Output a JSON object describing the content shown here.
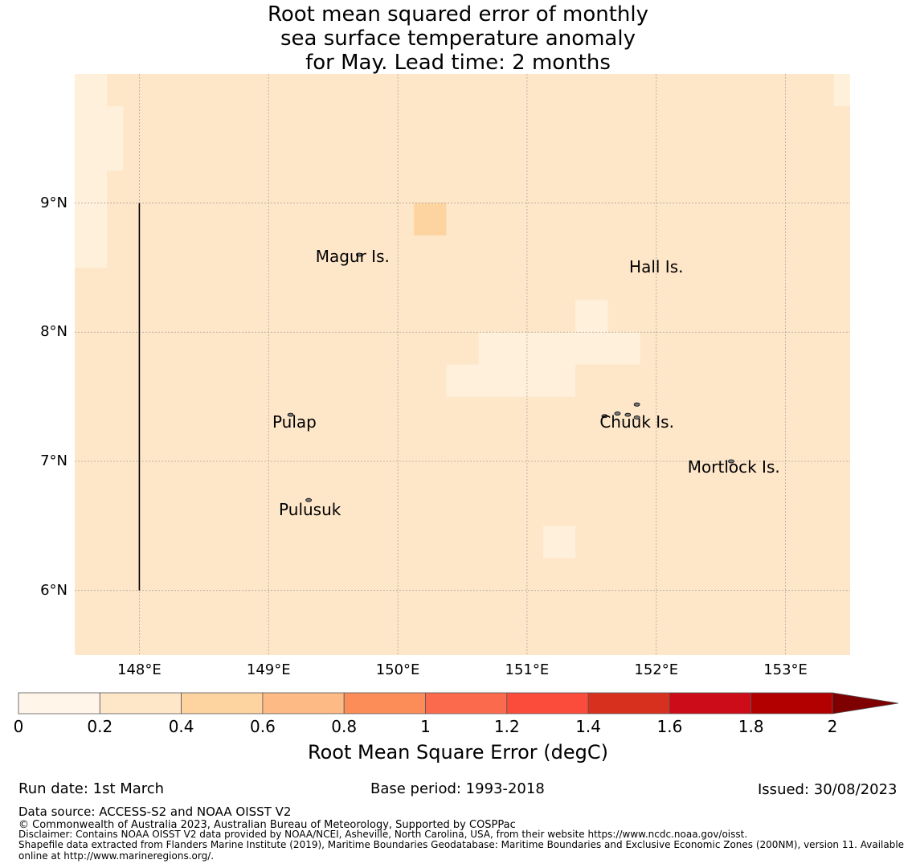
{
  "title": {
    "line1": "Root mean squared error of monthly",
    "line2": "sea surface temperature anomaly",
    "line3": "for May. Lead time: 2 months"
  },
  "map": {
    "lon_range": [
      147.5,
      153.5
    ],
    "lat_range": [
      5.5,
      10.0
    ],
    "lon_ticks": [
      {
        "value": 148,
        "label": "148°E"
      },
      {
        "value": 149,
        "label": "149°E"
      },
      {
        "value": 150,
        "label": "150°E"
      },
      {
        "value": 151,
        "label": "151°E"
      },
      {
        "value": 152,
        "label": "152°E"
      },
      {
        "value": 153,
        "label": "153°E"
      }
    ],
    "lat_ticks": [
      {
        "value": 9,
        "label": "9°N"
      },
      {
        "value": 8,
        "label": "8°N"
      },
      {
        "value": 7,
        "label": "7°N"
      },
      {
        "value": 6,
        "label": "6°N"
      }
    ],
    "background_color": "#fee6c9",
    "cells": [
      {
        "lon0": 147.5,
        "lon1": 147.75,
        "lat0": 8.5,
        "lat1": 10.0,
        "color": "#fff0dc"
      },
      {
        "lon0": 147.75,
        "lon1": 147.875,
        "lat0": 9.25,
        "lat1": 9.75,
        "color": "#fff0dc"
      },
      {
        "lon0": 153.375,
        "lon1": 153.5,
        "lat0": 9.75,
        "lat1": 10.0,
        "color": "#fff0dc"
      },
      {
        "lon0": 150.125,
        "lon1": 150.375,
        "lat0": 8.75,
        "lat1": 9.0,
        "color": "#fdd3a0"
      },
      {
        "lon0": 151.375,
        "lon1": 151.625,
        "lat0": 8.0,
        "lat1": 8.25,
        "color": "#fff0dc"
      },
      {
        "lon0": 150.625,
        "lon1": 151.875,
        "lat0": 7.75,
        "lat1": 8.0,
        "color": "#fff0dc"
      },
      {
        "lon0": 150.375,
        "lon1": 151.375,
        "lat0": 7.5,
        "lat1": 7.75,
        "color": "#fff0dc"
      },
      {
        "lon0": 151.125,
        "lon1": 151.375,
        "lat0": 6.25,
        "lat1": 6.5,
        "color": "#fff0dc"
      }
    ],
    "boundary_line": {
      "lon": 148.0,
      "lat0": 6.0,
      "lat1": 9.0
    },
    "places": [
      {
        "name": "Magur Is.",
        "lon": 149.65,
        "lat": 8.58
      },
      {
        "name": "Hall Is.",
        "lon": 152.0,
        "lat": 8.5
      },
      {
        "name": "Pulap",
        "lon": 149.2,
        "lat": 7.3
      },
      {
        "name": "Chuuk Is.",
        "lon": 151.85,
        "lat": 7.3
      },
      {
        "name": "Mortlock Is.",
        "lon": 152.6,
        "lat": 6.95
      },
      {
        "name": "Pulusuk",
        "lon": 149.32,
        "lat": 6.62
      }
    ],
    "islands": [
      {
        "lon": 149.7,
        "lat": 8.6
      },
      {
        "lon": 149.17,
        "lat": 7.36
      },
      {
        "lon": 149.31,
        "lat": 6.7
      },
      {
        "lon": 151.6,
        "lat": 7.35
      },
      {
        "lon": 151.7,
        "lat": 7.37
      },
      {
        "lon": 151.85,
        "lat": 7.44
      },
      {
        "lon": 151.85,
        "lat": 7.34
      },
      {
        "lon": 151.78,
        "lat": 7.36
      },
      {
        "lon": 152.58,
        "lat": 7.0
      }
    ]
  },
  "colorbar": {
    "label": "Root Mean Square Error (degC)",
    "ticks": [
      "0",
      "0.2",
      "0.4",
      "0.6",
      "0.8",
      "1",
      "1.2",
      "1.4",
      "1.6",
      "1.8",
      "2"
    ],
    "colors": [
      "#fff5e8",
      "#fee6c9",
      "#fdd3a0",
      "#fdba85",
      "#fc8d59",
      "#fc6a4d",
      "#fb4c3b",
      "#d7301f",
      "#cc0c18",
      "#b20000"
    ],
    "extend_color": "#7f0000"
  },
  "footer": {
    "run_date": "Run date: 1st March",
    "base_period": "Base period: 1993-2018",
    "issued": "Issued: 30/08/2023",
    "data_source": "Data source: ACCESS-S2 and NOAA OISST V2",
    "copyright": "© Commonwealth of Australia 2023, Australian Bureau of Meteorology, Supported by COSPPac",
    "disclaimer": "Disclaimer: Contains NOAA OISST V2 data provided by NOAA/NCEI, Asheville, North Carolina, USA, from their website https://www.ncdc.noaa.gov/oisst.",
    "shapefile1": "Shapefile data extracted from Flanders Marine Institute (2019), Maritime Boundaries Geodatabase: Maritime Boundaries and Exclusive Economic Zones (200NM), version 11. Available",
    "shapefile2": "online at http://www.marineregions.org/."
  }
}
